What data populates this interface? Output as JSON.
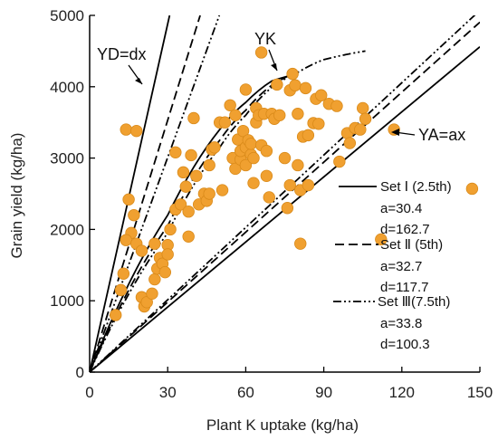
{
  "chart_data": {
    "type": "scatter",
    "xlabel": "Plant K uptake (kg/ha)",
    "ylabel": "Grain yield (kg/ha)",
    "xlim": [
      0,
      150
    ],
    "ylim": [
      0,
      5000
    ],
    "xticks": [
      "0",
      "30",
      "60",
      "90",
      "120",
      "150"
    ],
    "yticks": [
      "0",
      "1000",
      "2000",
      "3000",
      "4000",
      "5000"
    ],
    "x_tick_values": [
      0,
      30,
      60,
      90,
      120,
      150
    ],
    "y_tick_values": [
      0,
      1000,
      2000,
      3000,
      4000,
      5000
    ],
    "grid": false,
    "legend_position": "right",
    "point_color": "#F0A030",
    "point_edge_color": "#D98A1A",
    "points": [
      [
        14,
        3400
      ],
      [
        18,
        3380
      ],
      [
        15,
        2420
      ],
      [
        17,
        2200
      ],
      [
        16,
        1950
      ],
      [
        14,
        1850
      ],
      [
        18,
        1800
      ],
      [
        20,
        1700
      ],
      [
        13,
        1380
      ],
      [
        12,
        1150
      ],
      [
        10,
        800
      ],
      [
        20,
        1050
      ],
      [
        21,
        920
      ],
      [
        22,
        980
      ],
      [
        24,
        1100
      ],
      [
        25,
        1300
      ],
      [
        26,
        1450
      ],
      [
        27,
        1600
      ],
      [
        28,
        1520
      ],
      [
        29,
        1400
      ],
      [
        30,
        1780
      ],
      [
        25,
        1800
      ],
      [
        31,
        2000
      ],
      [
        30,
        1650
      ],
      [
        33,
        2280
      ],
      [
        35,
        2350
      ],
      [
        33,
        3080
      ],
      [
        36,
        2800
      ],
      [
        37,
        2600
      ],
      [
        38,
        2250
      ],
      [
        38,
        1900
      ],
      [
        39,
        3040
      ],
      [
        40,
        3560
      ],
      [
        41,
        2750
      ],
      [
        42,
        2350
      ],
      [
        44,
        2500
      ],
      [
        45,
        2400
      ],
      [
        46,
        2500
      ],
      [
        46,
        2900
      ],
      [
        47,
        3120
      ],
      [
        48,
        3150
      ],
      [
        50,
        3500
      ],
      [
        51,
        2550
      ],
      [
        52,
        3500
      ],
      [
        54,
        3740
      ],
      [
        55,
        3000
      ],
      [
        56,
        2850
      ],
      [
        56,
        3600
      ],
      [
        57,
        3260
      ],
      [
        58,
        2980
      ],
      [
        58,
        3100
      ],
      [
        59,
        3380
      ],
      [
        60,
        3150
      ],
      [
        60,
        2900
      ],
      [
        60,
        3960
      ],
      [
        61,
        3250
      ],
      [
        62,
        3050
      ],
      [
        62,
        3200
      ],
      [
        63,
        3000
      ],
      [
        63,
        2650
      ],
      [
        64,
        3500
      ],
      [
        64,
        3700
      ],
      [
        65,
        3600
      ],
      [
        66,
        4480
      ],
      [
        66,
        3180
      ],
      [
        67,
        3620
      ],
      [
        68,
        3100
      ],
      [
        68,
        2750
      ],
      [
        69,
        2450
      ],
      [
        70,
        3620
      ],
      [
        71,
        3550
      ],
      [
        72,
        4030
      ],
      [
        73,
        3600
      ],
      [
        75,
        3000
      ],
      [
        76,
        2300
      ],
      [
        77,
        2620
      ],
      [
        77,
        3950
      ],
      [
        78,
        4180
      ],
      [
        79,
        4020
      ],
      [
        80,
        2900
      ],
      [
        80,
        3620
      ],
      [
        81,
        2550
      ],
      [
        81,
        1800
      ],
      [
        82,
        3300
      ],
      [
        83,
        3980
      ],
      [
        84,
        3320
      ],
      [
        84,
        2620
      ],
      [
        86,
        3490
      ],
      [
        87,
        3830
      ],
      [
        88,
        3480
      ],
      [
        89,
        3880
      ],
      [
        92,
        3760
      ],
      [
        95,
        3730
      ],
      [
        96,
        2950
      ],
      [
        99,
        3350
      ],
      [
        100,
        3210
      ],
      [
        102,
        3420
      ],
      [
        104,
        3400
      ],
      [
        105,
        3700
      ],
      [
        106,
        3550
      ],
      [
        112,
        1860
      ],
      [
        117,
        3400
      ],
      [
        147,
        2570
      ]
    ],
    "lines": [
      {
        "name": "Set Ⅰ (2.5th)",
        "style": "solid",
        "dilution_slope": 162.7,
        "accumulation_slope": 30.4,
        "parabola": [
          [
            0,
            0
          ],
          [
            30,
            2200
          ],
          [
            50,
            3400
          ],
          [
            60,
            3780
          ],
          [
            70,
            4080
          ],
          [
            80,
            4180
          ]
        ]
      },
      {
        "name": "Set Ⅱ (5th)",
        "style": "dashed",
        "dilution_slope": 117.7,
        "accumulation_slope": 32.7,
        "parabola": [
          [
            0,
            0
          ],
          [
            30,
            2050
          ],
          [
            50,
            3250
          ],
          [
            60,
            3670
          ],
          [
            70,
            4020
          ],
          [
            80,
            4210
          ]
        ]
      },
      {
        "name": "Set Ⅲ(7.5th)",
        "style": "dashdotdot",
        "dilution_slope": 100.3,
        "accumulation_slope": 33.8,
        "parabola": [
          [
            0,
            0
          ],
          [
            30,
            1950
          ],
          [
            50,
            3150
          ],
          [
            60,
            3600
          ],
          [
            70,
            3990
          ],
          [
            80,
            4200
          ],
          [
            90,
            4380
          ],
          [
            106,
            4500
          ]
        ]
      }
    ],
    "annotations": [
      {
        "text": "YD=dx",
        "points_to": [
          21,
          4100
        ]
      },
      {
        "text": "YK",
        "points_to": [
          68,
          4160
        ]
      },
      {
        "text": "YA=ax",
        "points_to": [
          116,
          3400
        ]
      }
    ],
    "legend": [
      {
        "series": "Set Ⅰ (2.5th)",
        "line": "solid",
        "label": "Set Ⅰ (2.5th)",
        "params": [
          "a=30.4",
          "d=162.7"
        ]
      },
      {
        "series": "Set Ⅱ (5th)",
        "line": "dashed",
        "label": "Set Ⅱ (5th)",
        "params": [
          "a=32.7",
          "d=117.7"
        ]
      },
      {
        "series": "Set Ⅲ(7.5th)",
        "line": "dashdotdot",
        "label": "Set Ⅲ(7.5th)",
        "params": [
          "a=33.8",
          "d=100.3"
        ]
      }
    ]
  }
}
